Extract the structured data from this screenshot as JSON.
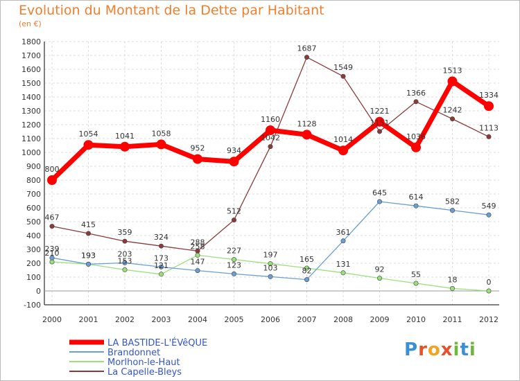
{
  "chart_data": {
    "type": "line",
    "title": "Evolution du Montant de la Dette par Habitant",
    "subtitle": "(en €)",
    "categories": [
      "2000",
      "2001",
      "2002",
      "2003",
      "2004",
      "2005",
      "2006",
      "2007",
      "2008",
      "2009",
      "2010",
      "2011",
      "2012"
    ],
    "ylim": [
      -100,
      1800
    ],
    "yticks": [
      "-100",
      "0",
      "100",
      "200",
      "300",
      "400",
      "500",
      "600",
      "700",
      "800",
      "900",
      "1000",
      "1100",
      "1200",
      "1300",
      "1400",
      "1500",
      "1600",
      "1700",
      "1800"
    ],
    "grid": true,
    "legend_position": "bottom-left",
    "series": [
      {
        "name": "LA BASTIDE-L'ÉVêQUE",
        "color": "#ff0000",
        "values": [
          800,
          1054,
          1041,
          1058,
          952,
          934,
          1160,
          1128,
          1014,
          1221,
          1036,
          1513,
          1334
        ],
        "labels": [
          "800",
          "1054",
          "1041",
          "1058",
          "952",
          "934",
          "1160",
          "1128",
          "1014",
          "1221",
          "1036",
          "1513",
          "1334"
        ]
      },
      {
        "name": "Brandonnet",
        "color": "#6a9fd4",
        "values": [
          239,
          193,
          203,
          173,
          147,
          123,
          103,
          82,
          361,
          645,
          614,
          582,
          549
        ],
        "labels": [
          "239",
          "193",
          "203",
          "173",
          "147",
          "123",
          "103",
          "82",
          "361",
          "645",
          "614",
          "582",
          "549"
        ]
      },
      {
        "name": "Morlhon-le-Haut",
        "color": "#99e07a",
        "values": [
          210,
          193,
          153,
          121,
          258,
          227,
          197,
          165,
          131,
          92,
          55,
          18,
          0
        ],
        "labels": [
          "210",
          "193",
          "153",
          "121",
          "258",
          "227",
          "197",
          "165",
          "131",
          "92",
          "55",
          "18",
          "0"
        ]
      },
      {
        "name": "La Capelle-Bleys",
        "color": "#8b3a3a",
        "values": [
          467,
          415,
          359,
          324,
          288,
          512,
          1042,
          1687,
          1549,
          1151,
          1366,
          1242,
          1113
        ],
        "labels": [
          "467",
          "415",
          "359",
          "324",
          "288",
          "512",
          "1042",
          "1687",
          "1549",
          "1151",
          "1366",
          "1242",
          "1113"
        ]
      }
    ]
  },
  "branding": {
    "logo": [
      "P",
      "r",
      "o",
      "x",
      "i",
      "t",
      "i"
    ]
  }
}
